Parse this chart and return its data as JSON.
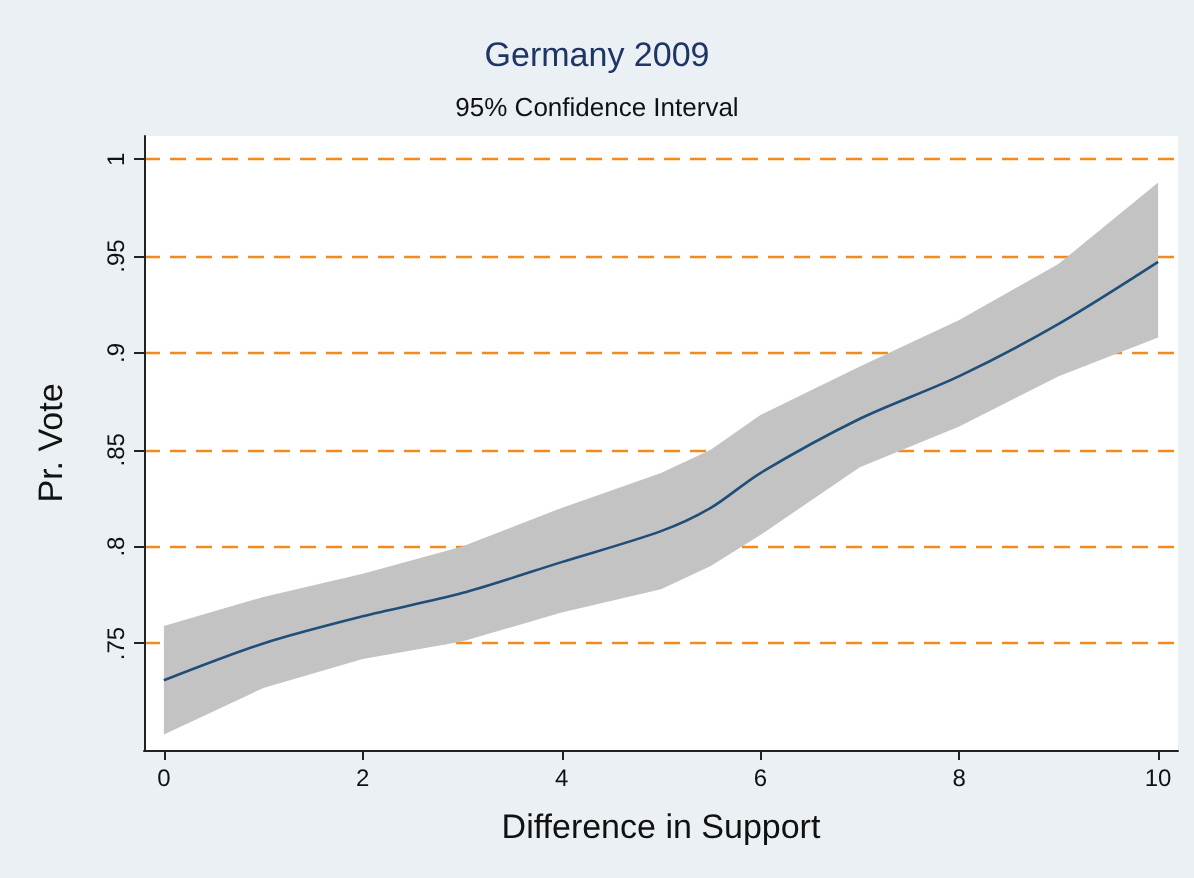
{
  "chart_data": {
    "type": "line",
    "title": "Germany 2009",
    "subtitle": "95% Confidence Interval",
    "xlabel": "Difference in Support",
    "ylabel": "Pr. Vote",
    "x": [
      0,
      1,
      2,
      3,
      4,
      5,
      5.5,
      6,
      7,
      8,
      9,
      10
    ],
    "series": [
      {
        "color": "#1f4e79",
        "values": [
          0.731,
          0.75,
          0.764,
          0.776,
          0.792,
          0.808,
          0.82,
          0.838,
          0.866,
          0.888,
          0.915,
          0.947
        ],
        "lower": [
          0.703,
          0.727,
          0.742,
          0.751,
          0.766,
          0.778,
          0.79,
          0.806,
          0.841,
          0.862,
          0.888,
          0.908
        ],
        "upper": [
          0.759,
          0.774,
          0.786,
          0.8,
          0.82,
          0.838,
          0.85,
          0.868,
          0.893,
          0.917,
          0.946,
          0.988
        ]
      }
    ],
    "xlim": [
      -0.2,
      10.2
    ],
    "ylim": [
      0.695,
      1.012
    ],
    "xticks": [
      0,
      2,
      4,
      6,
      8,
      10
    ],
    "yticks": [
      {
        "value": 0.75,
        "label": ".75"
      },
      {
        "value": 0.8,
        "label": ".8"
      },
      {
        "value": 0.85,
        "label": ".85"
      },
      {
        "value": 0.9,
        "label": ".9"
      },
      {
        "value": 0.95,
        "label": ".95"
      },
      {
        "value": 1,
        "label": "1"
      }
    ],
    "grid": "y",
    "marker": "none",
    "line_style": "solid"
  }
}
